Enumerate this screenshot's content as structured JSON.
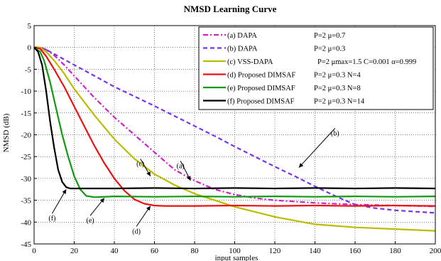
{
  "chart_data": {
    "type": "line",
    "title": "NMSD Learning Curve",
    "xlabel": "input samples",
    "ylabel": "NMSD (dB)",
    "xlim": [
      0,
      200
    ],
    "ylim": [
      -45,
      5
    ],
    "xticks": [
      "0",
      "20",
      "40",
      "60",
      "80",
      "100",
      "120",
      "140",
      "160",
      "180",
      "200"
    ],
    "yticks": [
      "5",
      "0",
      "-5",
      "-10",
      "-15",
      "-20",
      "-25",
      "-30",
      "-35",
      "-40",
      "-45"
    ],
    "grid": true,
    "legend_position": "top-right",
    "series": [
      {
        "label": "(a) DAPA",
        "params": "P=2   μ=0.7",
        "color": "#cc22cc",
        "dash": "dashdot",
        "x": [
          0,
          3,
          6,
          10,
          15,
          20,
          30,
          40,
          50,
          60,
          70,
          80,
          90,
          100,
          110,
          120,
          140,
          160,
          180,
          200
        ],
        "y": [
          0,
          0,
          -0.5,
          -1.8,
          -4,
          -6.5,
          -11.5,
          -16,
          -20,
          -24,
          -28,
          -30.5,
          -32.5,
          -33.7,
          -34.5,
          -35,
          -35.6,
          -36,
          -36.2,
          -36.4
        ]
      },
      {
        "label": "(b) DAPA",
        "params": "P=2   μ=0.3",
        "color": "#7733ee",
        "dash": "dash",
        "x": [
          0,
          3,
          6,
          10,
          20,
          30,
          40,
          50,
          60,
          70,
          80,
          90,
          100,
          110,
          120,
          130,
          140,
          150,
          160,
          170,
          180,
          190,
          200
        ],
        "y": [
          0,
          0,
          -0.5,
          -1.5,
          -4,
          -6.5,
          -9,
          -11.2,
          -13.4,
          -15.7,
          -18,
          -20.3,
          -22.7,
          -25,
          -27.3,
          -29.5,
          -31.8,
          -34,
          -36,
          -36.8,
          -37.3,
          -37.6,
          -37.9
        ]
      },
      {
        "label": "(c) VSS-DAPA",
        "params": "P=2   μmax=1.5  C=0.001  α=0.999",
        "color": "#bbbb00",
        "dash": "solid",
        "x": [
          0,
          3,
          6,
          10,
          15,
          20,
          30,
          40,
          50,
          60,
          70,
          80,
          90,
          100,
          120,
          140,
          160,
          180,
          200
        ],
        "y": [
          0,
          0,
          -1,
          -3,
          -6,
          -9.5,
          -15.5,
          -21,
          -25.5,
          -29,
          -31.5,
          -33.5,
          -35,
          -36.5,
          -38.8,
          -40.5,
          -41.2,
          -41.6,
          -42
        ]
      },
      {
        "label": "(d) Proposed DIMSAF",
        "params": "P=2   μ=0.3  N=4",
        "color": "#ee1111",
        "dash": "solid",
        "x": [
          0,
          3,
          6,
          10,
          15,
          20,
          25,
          30,
          35,
          40,
          45,
          50,
          55,
          60,
          65,
          80,
          100,
          120,
          140,
          160,
          180,
          200
        ],
        "y": [
          0,
          -0.3,
          -2,
          -5,
          -9,
          -13.5,
          -18,
          -22.5,
          -26.5,
          -30,
          -32.8,
          -34.8,
          -35.8,
          -36.2,
          -36.3,
          -36.3,
          -36.2,
          -36.3,
          -36.2,
          -36.3,
          -36.2,
          -36.3
        ]
      },
      {
        "label": "(e) Proposed DIMSAF",
        "params": "P=2   μ=0.3  N=8",
        "color": "#119911",
        "dash": "solid",
        "x": [
          0,
          3,
          5,
          8,
          11,
          14,
          17,
          20,
          23,
          26,
          30,
          40,
          60,
          80,
          100,
          120,
          140,
          160,
          180,
          200
        ],
        "y": [
          0,
          -1,
          -3,
          -8,
          -14,
          -20,
          -25,
          -29.5,
          -32.5,
          -34,
          -34.3,
          -34.1,
          -34.2,
          -34.1,
          -34.2,
          -34.1,
          -34.2,
          -34.1,
          -34.2,
          -34.1
        ]
      },
      {
        "label": "(f) Proposed DIMSAF",
        "params": "P=2   μ=0.3  N=14",
        "color": "#000000",
        "dash": "solid",
        "x": [
          0,
          2,
          4,
          6,
          8,
          10,
          12,
          14,
          16,
          18,
          20,
          40,
          60,
          80,
          100,
          120,
          140,
          160,
          180,
          200
        ],
        "y": [
          0,
          -1,
          -4,
          -10,
          -17,
          -23,
          -28,
          -30.8,
          -32,
          -32.3,
          -32.3,
          -32.3,
          -32.2,
          -32.3,
          -32.2,
          -32.3,
          -32.2,
          -32.3,
          -32.2,
          -32.3
        ]
      }
    ],
    "annotations": [
      {
        "text": "(a)",
        "tx": 73,
        "ty": -26.5,
        "ax": 78,
        "ay": -30.5
      },
      {
        "text": "(b)",
        "tx": 150,
        "ty": -19,
        "ax": 132,
        "ay": -27.5
      },
      {
        "text": "(c)",
        "tx": 53,
        "ty": -26,
        "ax": 58,
        "ay": -29.5
      },
      {
        "text": "(d)",
        "tx": 51,
        "ty": -41.5,
        "ax": 58,
        "ay": -36.3
      },
      {
        "text": "(e)",
        "tx": 28,
        "ty": -39,
        "ax": 35,
        "ay": -34.5
      },
      {
        "text": "(f)",
        "tx": 9,
        "ty": -38.5,
        "ax": 16,
        "ay": -32.5
      }
    ]
  }
}
